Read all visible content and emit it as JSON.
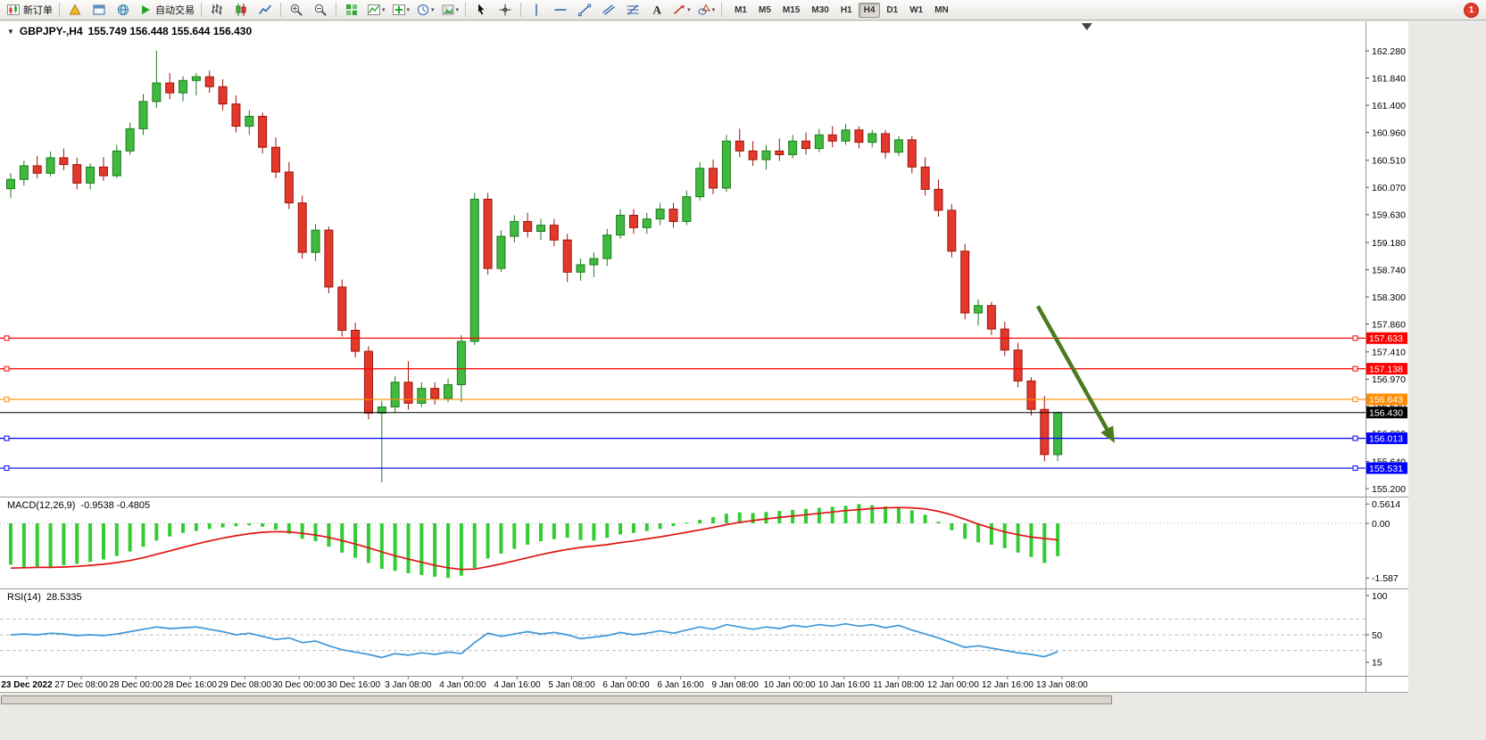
{
  "app": {
    "notification_badge": "1"
  },
  "colors": {
    "bull": "#3fba3f",
    "bull_border": "#1e7a1e",
    "bear": "#e3392c",
    "bear_border": "#9c150b",
    "macd_histogram": "#33cc33",
    "macd_signal": "#e01414",
    "rsi_line": "#3d96d9",
    "current_price": "#000000",
    "arrow": "#4c7a1f",
    "badge": "#e23b2e"
  },
  "toolbar": {
    "items": [
      {
        "type": "button",
        "name": "new-order-button",
        "icon": "new-order-icon",
        "label": "新订单"
      },
      {
        "type": "sep"
      },
      {
        "type": "button",
        "name": "metaeditor-button",
        "icon": "pyramid-icon"
      },
      {
        "type": "button",
        "name": "data-window-button",
        "icon": "window-icon"
      },
      {
        "type": "button",
        "name": "community-button",
        "icon": "globe-icon"
      },
      {
        "type": "button",
        "name": "auto-trading-button",
        "icon": "play-icon",
        "label": "自动交易"
      },
      {
        "type": "sep"
      },
      {
        "type": "button",
        "name": "bar-chart-button",
        "icon": "bars-icon"
      },
      {
        "type": "button",
        "name": "candlestick-chart-button",
        "icon": "candles-icon"
      },
      {
        "type": "button",
        "name": "line-chart-button",
        "icon": "line-icon"
      },
      {
        "type": "sep"
      },
      {
        "type": "button",
        "name": "zoom-in-button",
        "icon": "zoom-in-icon"
      },
      {
        "type": "button",
        "name": "zoom-out-button",
        "icon": "zoom-out-icon"
      },
      {
        "type": "sep"
      },
      {
        "type": "button",
        "name": "tile-windows-button",
        "icon": "tile-icon"
      },
      {
        "type": "button",
        "name": "indicators-button",
        "icon": "indicator-icon",
        "dropdown": true
      },
      {
        "type": "button",
        "name": "new-chart-button",
        "icon": "plus-chart-icon",
        "dropdown": true
      },
      {
        "type": "button",
        "name": "periods-button",
        "icon": "clock-icon",
        "dropdown": true
      },
      {
        "type": "button",
        "name": "templates-button",
        "icon": "template-icon",
        "dropdown": true
      },
      {
        "type": "sep"
      },
      {
        "type": "button",
        "name": "cursor-button",
        "icon": "cursor-icon"
      },
      {
        "type": "button",
        "name": "crosshair-button",
        "icon": "crosshair-icon"
      },
      {
        "type": "sep"
      },
      {
        "type": "button",
        "name": "vertical-line-button",
        "icon": "vline-icon"
      },
      {
        "type": "button",
        "name": "horizontal-line-button",
        "icon": "hline-icon"
      },
      {
        "type": "button",
        "name": "trendline-button",
        "icon": "trendline-icon"
      },
      {
        "type": "button",
        "name": "channel-button",
        "icon": "channel-icon"
      },
      {
        "type": "button",
        "name": "fibonacci-button",
        "icon": "fibo-icon"
      },
      {
        "type": "button",
        "name": "text-label-button",
        "icon": "text-icon"
      },
      {
        "type": "button",
        "name": "arrows-button",
        "icon": "arrows-icon",
        "dropdown": true
      },
      {
        "type": "button",
        "name": "shapes-button",
        "icon": "shapes-icon",
        "dropdown": true
      },
      {
        "type": "sep"
      }
    ],
    "timeframes": {
      "items": [
        "M1",
        "M5",
        "M15",
        "M30",
        "H1",
        "H4",
        "D1",
        "W1",
        "MN"
      ],
      "active": "H4"
    }
  },
  "chart_data": {
    "type": "candlestick",
    "symbol": "GBPJPY-",
    "timeframe": "H4",
    "title_symbol": "GBPJPY-,H4",
    "title_ohlc": "155.749 156.448 155.644 156.430",
    "price_axis_labels": [
      "162.280",
      "161.840",
      "161.400",
      "160.960",
      "160.510",
      "160.070",
      "159.630",
      "159.180",
      "158.740",
      "158.300",
      "157.860",
      "157.410",
      "156.970",
      "156.530",
      "156.090",
      "155.640",
      "155.200"
    ],
    "time_labels": [
      "23 Dec 2022",
      "27 Dec 08:00",
      "28 Dec 00:00",
      "28 Dec 16:00",
      "29 Dec 08:00",
      "30 Dec 00:00",
      "30 Dec 16:00",
      "3 Jan 08:00",
      "4 Jan 00:00",
      "4 Jan 16:00",
      "5 Jan 08:00",
      "6 Jan 00:00",
      "6 Jan 16:00",
      "9 Jan 08:00",
      "10 Jan 00:00",
      "10 Jan 16:00",
      "11 Jan 08:00",
      "12 Jan 00:00",
      "12 Jan 16:00",
      "13 Jan 08:00"
    ],
    "candles": [
      [
        160.05,
        160.3,
        159.9,
        160.2
      ],
      [
        160.2,
        160.5,
        160.1,
        160.42
      ],
      [
        160.42,
        160.58,
        160.22,
        160.3
      ],
      [
        160.3,
        160.65,
        160.25,
        160.55
      ],
      [
        160.55,
        160.7,
        160.35,
        160.44
      ],
      [
        160.44,
        160.55,
        160.04,
        160.14
      ],
      [
        160.14,
        160.46,
        160.04,
        160.4
      ],
      [
        160.4,
        160.56,
        160.18,
        160.26
      ],
      [
        160.26,
        160.76,
        160.22,
        160.66
      ],
      [
        160.66,
        161.12,
        160.6,
        161.02
      ],
      [
        161.02,
        161.58,
        160.92,
        161.46
      ],
      [
        161.46,
        162.28,
        161.36,
        161.76
      ],
      [
        161.76,
        161.92,
        161.5,
        161.6
      ],
      [
        161.6,
        161.87,
        161.46,
        161.8
      ],
      [
        161.8,
        161.92,
        161.56,
        161.86
      ],
      [
        161.86,
        161.96,
        161.6,
        161.7
      ],
      [
        161.7,
        161.82,
        161.32,
        161.42
      ],
      [
        161.42,
        161.56,
        160.96,
        161.06
      ],
      [
        161.06,
        161.32,
        160.92,
        161.22
      ],
      [
        161.22,
        161.28,
        160.62,
        160.72
      ],
      [
        160.72,
        160.88,
        160.22,
        160.32
      ],
      [
        160.32,
        160.48,
        159.72,
        159.82
      ],
      [
        159.82,
        159.94,
        158.92,
        159.02
      ],
      [
        159.02,
        159.48,
        158.88,
        159.38
      ],
      [
        159.38,
        159.44,
        158.36,
        158.46
      ],
      [
        158.46,
        158.58,
        157.66,
        157.76
      ],
      [
        157.76,
        157.88,
        157.32,
        157.42
      ],
      [
        157.42,
        157.5,
        156.32,
        156.42
      ],
      [
        156.42,
        156.62,
        155.3,
        156.52
      ],
      [
        156.52,
        157.02,
        156.42,
        156.92
      ],
      [
        156.92,
        157.26,
        156.48,
        156.58
      ],
      [
        156.58,
        156.92,
        156.52,
        156.82
      ],
      [
        156.82,
        156.92,
        156.56,
        156.66
      ],
      [
        156.66,
        156.98,
        156.6,
        156.88
      ],
      [
        156.88,
        157.68,
        156.6,
        157.58
      ],
      [
        157.58,
        159.98,
        157.52,
        159.88
      ],
      [
        159.88,
        159.98,
        158.66,
        158.76
      ],
      [
        158.76,
        159.38,
        158.7,
        159.28
      ],
      [
        159.28,
        159.62,
        159.18,
        159.52
      ],
      [
        159.52,
        159.66,
        159.26,
        159.36
      ],
      [
        159.36,
        159.56,
        159.22,
        159.46
      ],
      [
        159.46,
        159.56,
        159.12,
        159.22
      ],
      [
        159.22,
        159.32,
        158.54,
        158.7
      ],
      [
        158.7,
        158.92,
        158.56,
        158.82
      ],
      [
        158.82,
        159.02,
        158.62,
        158.92
      ],
      [
        158.92,
        159.4,
        158.8,
        159.3
      ],
      [
        159.3,
        159.72,
        159.24,
        159.62
      ],
      [
        159.62,
        159.72,
        159.32,
        159.42
      ],
      [
        159.42,
        159.66,
        159.32,
        159.56
      ],
      [
        159.56,
        159.82,
        159.46,
        159.72
      ],
      [
        159.72,
        159.82,
        159.42,
        159.52
      ],
      [
        159.52,
        160.02,
        159.46,
        159.92
      ],
      [
        159.92,
        160.48,
        159.86,
        160.38
      ],
      [
        160.38,
        160.52,
        159.96,
        160.06
      ],
      [
        160.06,
        160.92,
        160.0,
        160.82
      ],
      [
        160.82,
        161.02,
        160.56,
        160.66
      ],
      [
        160.66,
        160.82,
        160.42,
        160.52
      ],
      [
        160.52,
        160.76,
        160.36,
        160.66
      ],
      [
        160.66,
        160.86,
        160.5,
        160.6
      ],
      [
        160.6,
        160.92,
        160.54,
        160.82
      ],
      [
        160.82,
        160.96,
        160.6,
        160.7
      ],
      [
        160.7,
        161.02,
        160.64,
        160.92
      ],
      [
        160.92,
        161.06,
        160.72,
        160.82
      ],
      [
        160.82,
        161.1,
        160.76,
        161.0
      ],
      [
        161.0,
        161.06,
        160.7,
        160.8
      ],
      [
        160.8,
        161.0,
        160.72,
        160.94
      ],
      [
        160.94,
        161.0,
        160.54,
        160.64
      ],
      [
        160.64,
        160.9,
        160.58,
        160.84
      ],
      [
        160.84,
        160.9,
        160.3,
        160.4
      ],
      [
        160.4,
        160.56,
        159.94,
        160.04
      ],
      [
        160.04,
        160.2,
        159.6,
        159.7
      ],
      [
        159.7,
        159.8,
        158.94,
        159.04
      ],
      [
        159.04,
        159.16,
        157.94,
        158.04
      ],
      [
        158.04,
        158.26,
        157.84,
        158.16
      ],
      [
        158.16,
        158.22,
        157.68,
        157.78
      ],
      [
        157.78,
        157.9,
        157.34,
        157.44
      ],
      [
        157.44,
        157.56,
        156.84,
        156.94
      ],
      [
        156.94,
        157.0,
        156.38,
        156.48
      ],
      [
        156.48,
        156.7,
        155.64,
        155.75
      ],
      [
        155.749,
        156.448,
        155.644,
        156.43
      ]
    ],
    "hlines": [
      {
        "name": "resistance-line-1",
        "price": 157.633,
        "label": "157.633",
        "color": "#ff0000"
      },
      {
        "name": "resistance-line-2",
        "price": 157.138,
        "label": "157.138",
        "color": "#ff0000"
      },
      {
        "name": "orange-level-line",
        "price": 156.643,
        "label": "156.643",
        "color": "#ff8c00"
      },
      {
        "name": "current-price-line",
        "price": 156.43,
        "label": "156.430",
        "color": "#000000",
        "current": true
      },
      {
        "name": "support-line-1",
        "price": 156.013,
        "label": "156.013",
        "color": "#0000ff"
      },
      {
        "name": "support-line-2",
        "price": 155.531,
        "label": "155.531",
        "color": "#0000ff"
      }
    ],
    "arrow_annotation": {
      "from_bar": 77.5,
      "from_price": 158.15,
      "to_bar": 83,
      "to_price": 156.05
    },
    "shift_marker_bar": 81.2,
    "indicators": {
      "macd": {
        "name": "MACD(12,26,9)",
        "current": "-0.9538 -0.4805",
        "scale_labels": [
          "0.5614",
          "0.00",
          "-1.587"
        ],
        "histogram": [
          -1.2,
          -1.28,
          -1.25,
          -1.3,
          -1.22,
          -1.18,
          -1.12,
          -1.05,
          -0.95,
          -0.82,
          -0.68,
          -0.5,
          -0.38,
          -0.28,
          -0.22,
          -0.16,
          -0.12,
          -0.08,
          -0.06,
          -0.1,
          -0.18,
          -0.3,
          -0.45,
          -0.52,
          -0.68,
          -0.85,
          -1.0,
          -1.15,
          -1.32,
          -1.38,
          -1.45,
          -1.5,
          -1.55,
          -1.587,
          -1.52,
          -1.3,
          -1.02,
          -0.88,
          -0.74,
          -0.62,
          -0.52,
          -0.46,
          -0.42,
          -0.48,
          -0.5,
          -0.42,
          -0.32,
          -0.28,
          -0.22,
          -0.16,
          -0.08,
          0.02,
          0.1,
          0.18,
          0.28,
          0.32,
          0.3,
          0.33,
          0.36,
          0.39,
          0.42,
          0.45,
          0.48,
          0.51,
          0.5614,
          0.53,
          0.49,
          0.45,
          0.38,
          0.25,
          0.05,
          -0.2,
          -0.45,
          -0.55,
          -0.62,
          -0.72,
          -0.85,
          -0.98,
          -1.15,
          -0.9538
        ],
        "signal": [
          -1.3,
          -1.29,
          -1.28,
          -1.28,
          -1.27,
          -1.25,
          -1.22,
          -1.19,
          -1.14,
          -1.08,
          -1.0,
          -0.9,
          -0.8,
          -0.7,
          -0.6,
          -0.51,
          -0.43,
          -0.36,
          -0.3,
          -0.26,
          -0.24,
          -0.25,
          -0.29,
          -0.34,
          -0.41,
          -0.5,
          -0.6,
          -0.71,
          -0.83,
          -0.94,
          -1.04,
          -1.13,
          -1.22,
          -1.29,
          -1.34,
          -1.33,
          -1.26,
          -1.18,
          -1.09,
          -1.0,
          -0.91,
          -0.83,
          -0.76,
          -0.7,
          -0.66,
          -0.62,
          -0.56,
          -0.51,
          -0.45,
          -0.39,
          -0.33,
          -0.26,
          -0.19,
          -0.12,
          -0.04,
          0.03,
          0.08,
          0.13,
          0.17,
          0.21,
          0.25,
          0.29,
          0.33,
          0.37,
          0.4,
          0.43,
          0.45,
          0.46,
          0.45,
          0.42,
          0.35,
          0.25,
          0.12,
          -0.02,
          -0.14,
          -0.25,
          -0.33,
          -0.4,
          -0.44,
          -0.4805
        ]
      },
      "rsi": {
        "name": "RSI(14)",
        "current": "28.5335",
        "scale_labels": [
          "100",
          "50",
          "15"
        ],
        "levels": [
          70,
          50,
          30
        ],
        "values": [
          50,
          51,
          50,
          52,
          51,
          49,
          50,
          49,
          51,
          54,
          57,
          60,
          58,
          59,
          60,
          57,
          54,
          50,
          52,
          48,
          44,
          46,
          40,
          42,
          36,
          31,
          28,
          25,
          21,
          26,
          24,
          27,
          25,
          28,
          26,
          40,
          52,
          48,
          51,
          54,
          51,
          53,
          50,
          45,
          47,
          49,
          53,
          50,
          52,
          55,
          52,
          56,
          60,
          57,
          63,
          60,
          57,
          60,
          58,
          62,
          60,
          63,
          61,
          64,
          61,
          63,
          59,
          62,
          56,
          51,
          46,
          40,
          34,
          36,
          33,
          30,
          27,
          25,
          22,
          28.5335
        ]
      }
    }
  }
}
